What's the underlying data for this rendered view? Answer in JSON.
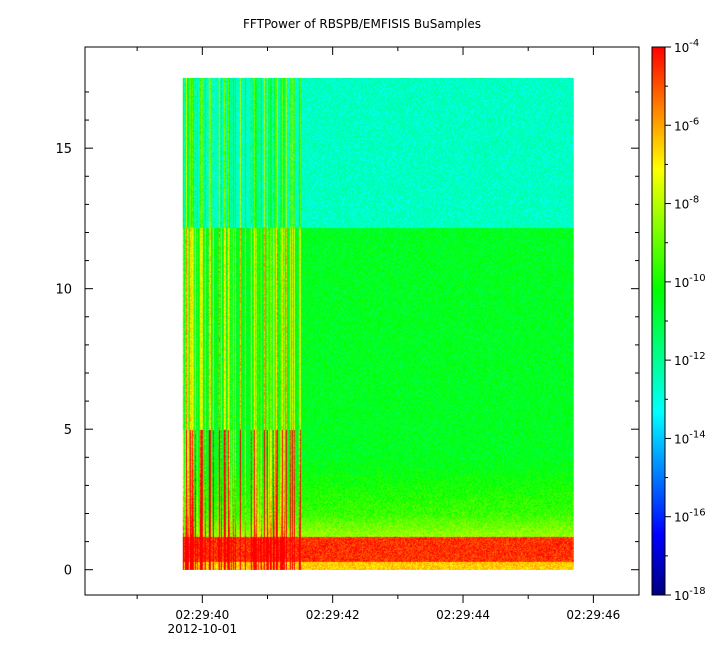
{
  "chart_data": {
    "type": "heatmap",
    "title": "FFTPower of RBSPB/EMFISIS  BuSamples",
    "xlabel": "",
    "ylabel": "",
    "x_tick_labels": [
      "02:29:40",
      "02:29:42",
      "02:29:44",
      "02:29:46"
    ],
    "x_date_label": "2012-10-01",
    "x_ticks_seconds": [
      40,
      42,
      44,
      46
    ],
    "xlim_seconds": [
      38.2,
      46.7
    ],
    "data_x_range_seconds": [
      39.7,
      45.7
    ],
    "y_ticks": [
      0,
      5,
      10,
      15
    ],
    "ylim": [
      -0.9,
      18.6
    ],
    "data_y_range": [
      0,
      17.5
    ],
    "colorbar": {
      "scale": "log",
      "min_exponent": -18,
      "max_exponent": -4,
      "tick_exponents": [
        -4,
        -6,
        -8,
        -10,
        -12,
        -14,
        -16,
        -18
      ],
      "colors": [
        "#000080",
        "#0000ff",
        "#0080ff",
        "#00ffff",
        "#00ff80",
        "#00ff00",
        "#80ff00",
        "#ffff00",
        "#ff8000",
        "#ff0000"
      ]
    },
    "features": {
      "strong_band_y": [
        0.3,
        1.2
      ],
      "broadband_bursts_end_seconds": 41.5,
      "upper_level_change_y": 12.2
    }
  }
}
